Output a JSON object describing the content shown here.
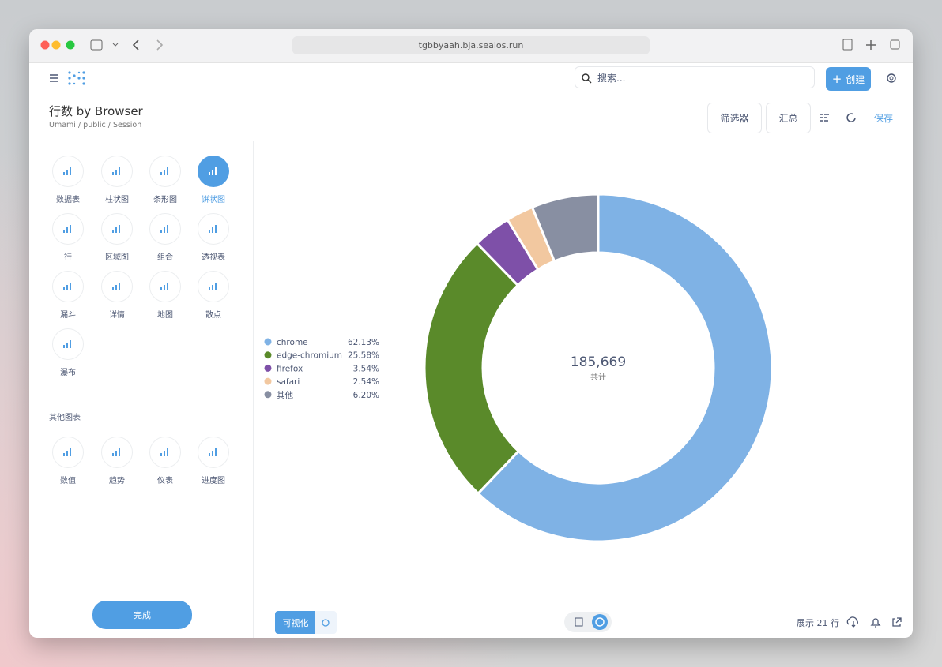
{
  "browser": {
    "url": "tgbbyaah.bja.sealos.run"
  },
  "header": {
    "search_placeholder": "搜索...",
    "create_button": "创建"
  },
  "question": {
    "title": "行数 by Browser",
    "breadcrumb": "Umami / public / Session",
    "filter_button": "筛选器",
    "summarize_button": "汇总",
    "save_button": "保存"
  },
  "sidebar": {
    "chart_types": [
      "数据表",
      "柱状图",
      "条形图",
      "饼状图",
      "行",
      "区域图",
      "组合",
      "透视表",
      "漏斗",
      "详情",
      "地图",
      "散点",
      "瀑布"
    ],
    "selected_index": 3,
    "other_heading": "其他图表",
    "other_types": [
      "数值",
      "趋势",
      "仪表",
      "进度图"
    ],
    "done_button": "完成"
  },
  "chart_data": {
    "type": "pie",
    "categories": [
      "chrome",
      "edge-chromium",
      "firefox",
      "safari",
      "其他"
    ],
    "values": [
      62.13,
      25.58,
      3.54,
      2.54,
      6.2
    ],
    "value_labels": [
      "62.13%",
      "25.58%",
      "3.54%",
      "2.54%",
      "6.20%"
    ],
    "colors": [
      "#7fb2e5",
      "#5a8a2a",
      "#7e50a8",
      "#f2c8a0",
      "#888fa2"
    ],
    "total_label": "185,669",
    "total_caption": "共计"
  },
  "footer": {
    "visualization_button": "可视化",
    "row_count": "展示 21 行"
  }
}
